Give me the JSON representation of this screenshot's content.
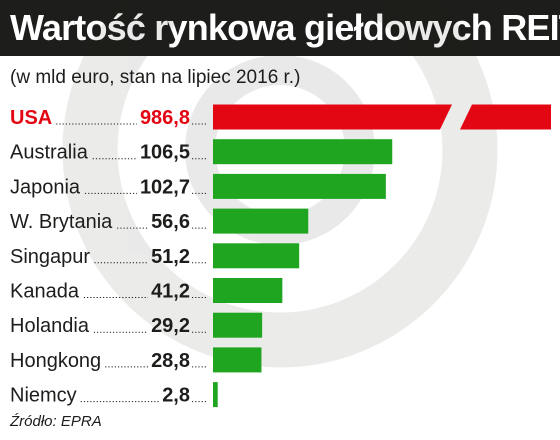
{
  "chart_data": {
    "type": "bar",
    "orientation": "horizontal",
    "title": "Wartość rynkowa giełdowych REIT",
    "subtitle": "(w mld euro, stan na lipiec 2016 r.)",
    "source": "Źródło: EPRA",
    "categories": [
      "USA",
      "Australia",
      "Japonia",
      "W. Brytania",
      "Singapur",
      "Kanada",
      "Holandia",
      "Hongkong",
      "Niemcy"
    ],
    "values": [
      986.8,
      106.5,
      102.7,
      56.6,
      51.2,
      41.2,
      29.2,
      28.8,
      2.8
    ],
    "value_labels": [
      "986,8",
      "106,5",
      "102,7",
      "56,6",
      "51,2",
      "41,2",
      "29,2",
      "28,8",
      "2,8"
    ],
    "highlight_category": "USA",
    "truncated_categories": [
      "USA"
    ],
    "colors": {
      "bar": "#1fa51f",
      "highlight": "#e30613",
      "text": "#1d1d1b",
      "title_bg": "#1d1d1b",
      "title_text": "#ffffff"
    }
  }
}
